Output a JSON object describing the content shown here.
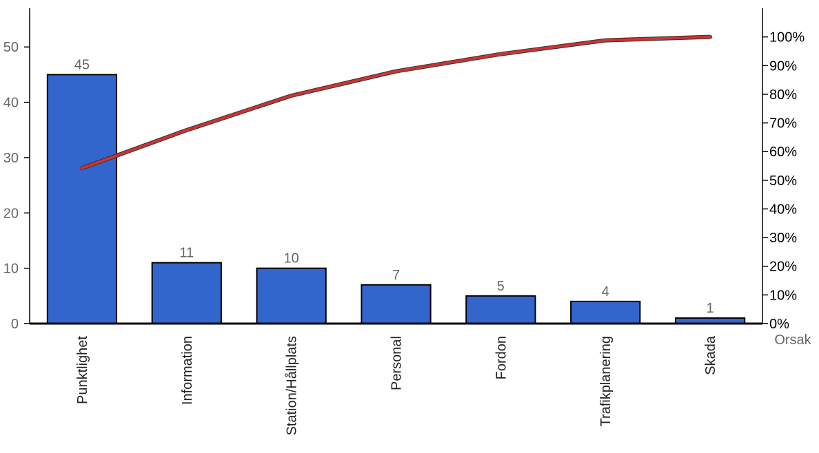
{
  "chart_data": {
    "type": "bar",
    "categories": [
      "Punktlighet",
      "Information",
      "Station/Hållplats",
      "Personal",
      "Fordon",
      "Trafikplanering",
      "Skada"
    ],
    "values": [
      45,
      11,
      10,
      7,
      5,
      4,
      1
    ],
    "cumulative_percent": [
      54.2,
      67.5,
      79.5,
      88.0,
      94.0,
      98.8,
      100.0
    ],
    "xlabel": "Orsak",
    "ylim": [
      0,
      57
    ],
    "y_ticks": [
      0,
      10,
      20,
      30,
      40,
      50
    ],
    "y2lim": [
      0,
      110
    ],
    "y2_ticks": [
      "0%",
      "10%",
      "20%",
      "30%",
      "40%",
      "50%",
      "60%",
      "70%",
      "80%",
      "90%",
      "100%"
    ],
    "grid": false,
    "bar_color": "#3366cc",
    "line_color": "#cc3333"
  }
}
